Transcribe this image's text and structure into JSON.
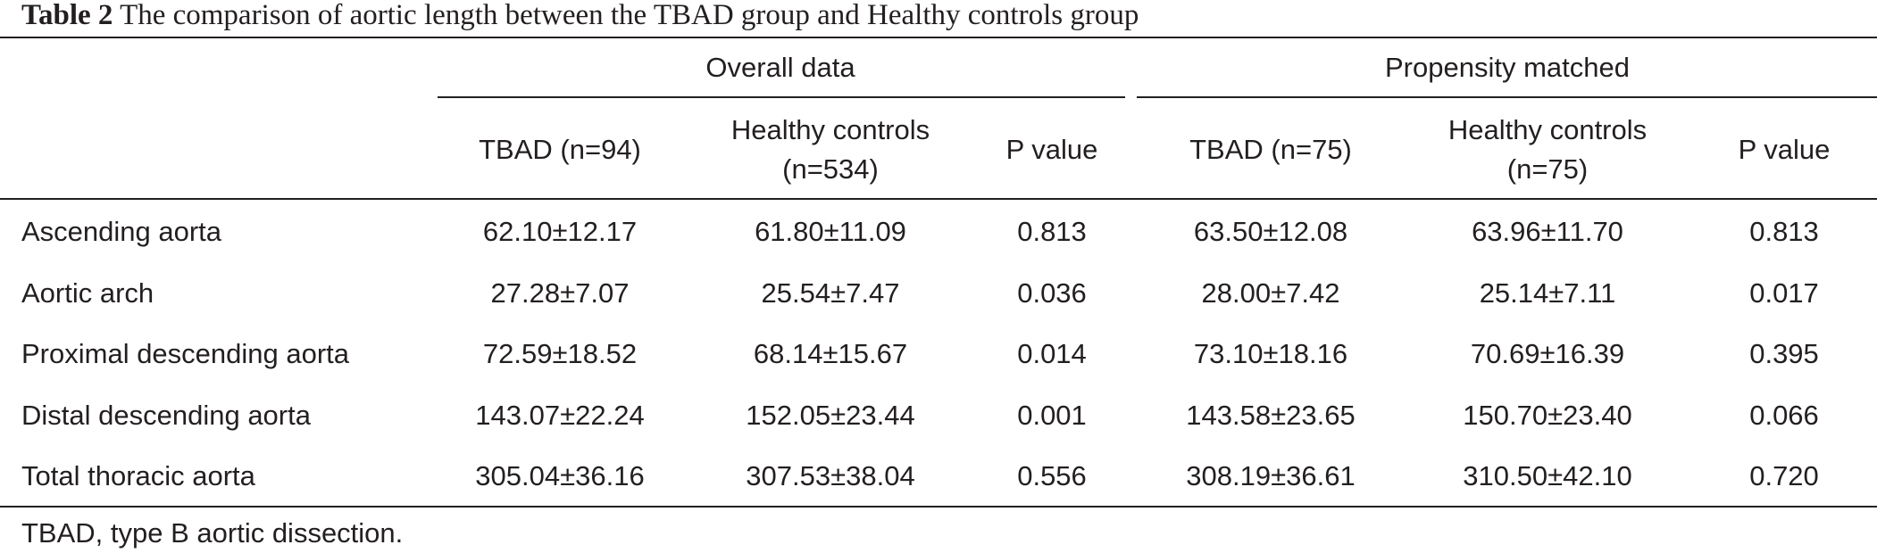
{
  "caption": {
    "label": "Table 2",
    "text": "The comparison of aortic length between the TBAD group and Healthy controls group"
  },
  "table": {
    "group_headers": [
      "Overall data",
      "Propensity matched"
    ],
    "column_headers": [
      [
        "TBAD (n=94)"
      ],
      [
        "Healthy controls",
        "(n=534)"
      ],
      [
        "P value"
      ],
      [
        "TBAD (n=75)"
      ],
      [
        "Healthy controls",
        "(n=75)"
      ],
      [
        "P value"
      ]
    ],
    "rows": [
      {
        "label": "Ascending aorta",
        "values": [
          "62.10±12.17",
          "61.80±11.09",
          "0.813",
          "63.50±12.08",
          "63.96±11.70",
          "0.813"
        ]
      },
      {
        "label": "Aortic arch",
        "values": [
          "27.28±7.07",
          "25.54±7.47",
          "0.036",
          "28.00±7.42",
          "25.14±7.11",
          "0.017"
        ]
      },
      {
        "label": "Proximal descending aorta",
        "values": [
          "72.59±18.52",
          "68.14±15.67",
          "0.014",
          "73.10±18.16",
          "70.69±16.39",
          "0.395"
        ]
      },
      {
        "label": "Distal descending aorta",
        "values": [
          "143.07±22.24",
          "152.05±23.44",
          "0.001",
          "143.58±23.65",
          "150.70±23.40",
          "0.066"
        ]
      },
      {
        "label": "Total thoracic aorta",
        "values": [
          "305.04±36.16",
          "307.53±38.04",
          "0.556",
          "308.19±36.61",
          "310.50±42.10",
          "0.720"
        ]
      }
    ]
  },
  "footnote": "TBAD, type B aortic dissection."
}
